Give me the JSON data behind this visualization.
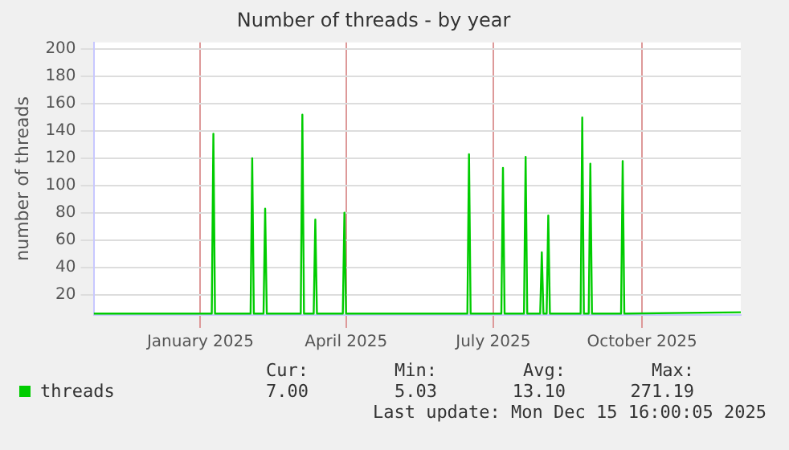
{
  "chart_data": {
    "type": "line",
    "title": "Number of threads - by year",
    "ylabel": "number of threads",
    "x": [
      "2024-11-10",
      "2025-01-22",
      "2025-01-23",
      "2025-01-24",
      "2025-02-15",
      "2025-02-16",
      "2025-02-17",
      "2025-02-23",
      "2025-02-24",
      "2025-02-25",
      "2025-03-18",
      "2025-03-19",
      "2025-03-20",
      "2025-03-26",
      "2025-03-27",
      "2025-03-28",
      "2025-04-13",
      "2025-04-14",
      "2025-04-15",
      "2025-06-29",
      "2025-06-30",
      "2025-07-01",
      "2025-07-20",
      "2025-07-21",
      "2025-07-22",
      "2025-08-03",
      "2025-08-04",
      "2025-08-05",
      "2025-08-13",
      "2025-08-14",
      "2025-08-15",
      "2025-08-17",
      "2025-08-18",
      "2025-08-19",
      "2025-09-07",
      "2025-09-08",
      "2025-09-09",
      "2025-09-12",
      "2025-09-13",
      "2025-09-14",
      "2025-10-02",
      "2025-10-03",
      "2025-10-04",
      "2025-12-15"
    ],
    "series": [
      {
        "name": "threads",
        "color": "#00cc00",
        "values": [
          6,
          6,
          138,
          6,
          6,
          120,
          6,
          6,
          83,
          6,
          6,
          152,
          6,
          6,
          75,
          6,
          6,
          80,
          6,
          6,
          123,
          6,
          6,
          113,
          6,
          6,
          121,
          6,
          6,
          51,
          6,
          6,
          78,
          6,
          6,
          150,
          6,
          6,
          116,
          6,
          6,
          118,
          6,
          7
        ]
      }
    ],
    "xlim": [
      "2024-11-10",
      "2025-12-15"
    ],
    "xticks": [
      {
        "value": "2025-01-15",
        "label": "January 2025"
      },
      {
        "value": "2025-04-15",
        "label": "April 2025"
      },
      {
        "value": "2025-07-15",
        "label": "July 2025"
      },
      {
        "value": "2025-10-15",
        "label": "October 2025"
      }
    ],
    "ylim": [
      5,
      205
    ],
    "yticks": [
      20,
      40,
      60,
      80,
      100,
      120,
      140,
      160,
      180,
      200
    ],
    "grid": true,
    "legend": "bottom left",
    "marker": "none",
    "line_style": "solid",
    "annotations": [
      "Cur:",
      "Min:",
      "Avg:",
      "Max:",
      "7.00",
      "5.03",
      "13.10",
      "271.19",
      "Last update: Mon Dec 15 16:00:05 2025"
    ]
  }
}
